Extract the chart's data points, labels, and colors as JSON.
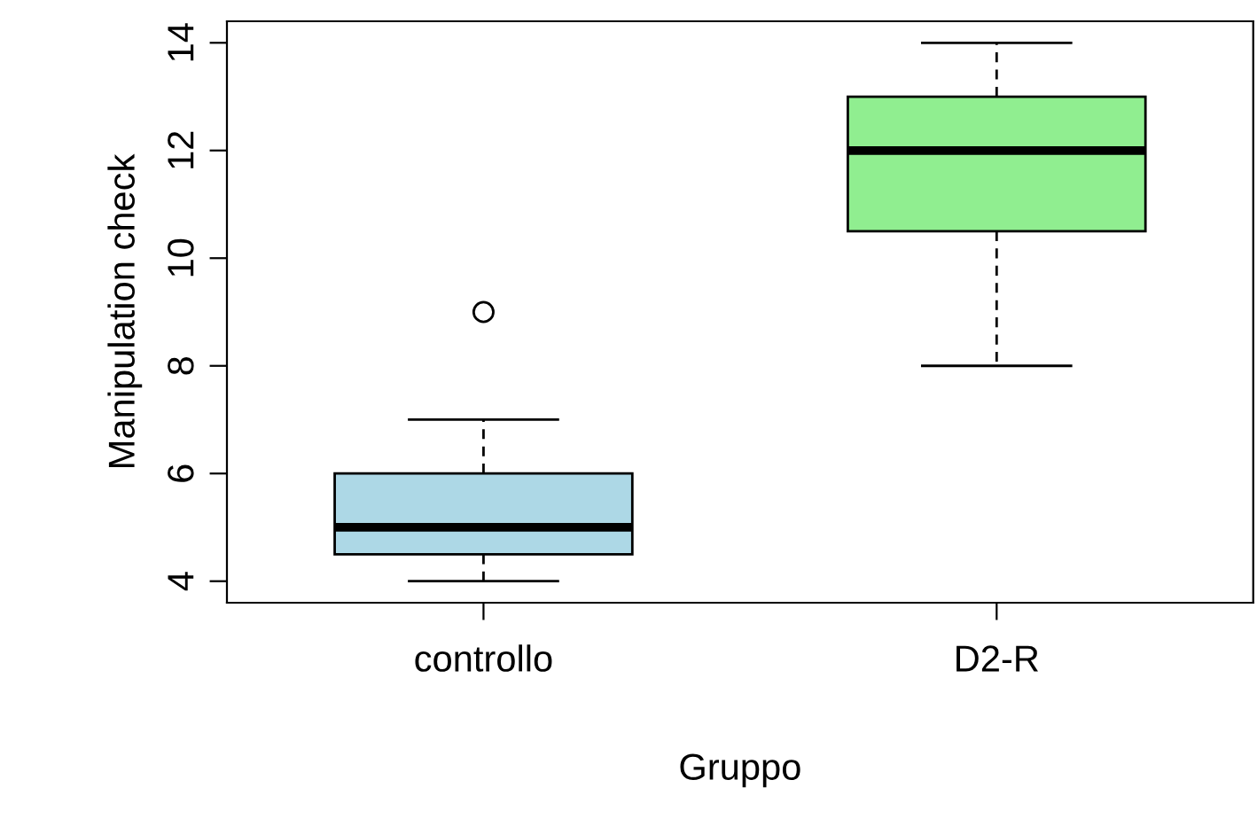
{
  "chart_data": {
    "type": "box",
    "xlabel": "Gruppo",
    "ylabel": "Manipulation check",
    "categories": [
      "controllo",
      "D2-R"
    ],
    "colors": [
      "#add8e6",
      "#90ee90"
    ],
    "boxes": [
      {
        "low": 4,
        "q1": 4.5,
        "median": 5,
        "q3": 6,
        "high": 7,
        "outliers": [
          9
        ]
      },
      {
        "low": 8,
        "q1": 10.5,
        "median": 12,
        "q3": 13,
        "high": 14
      }
    ],
    "ylim": [
      3.6,
      14.4
    ],
    "yticks": [
      4,
      6,
      8,
      10,
      12,
      14
    ],
    "grid": false,
    "legend": false
  }
}
